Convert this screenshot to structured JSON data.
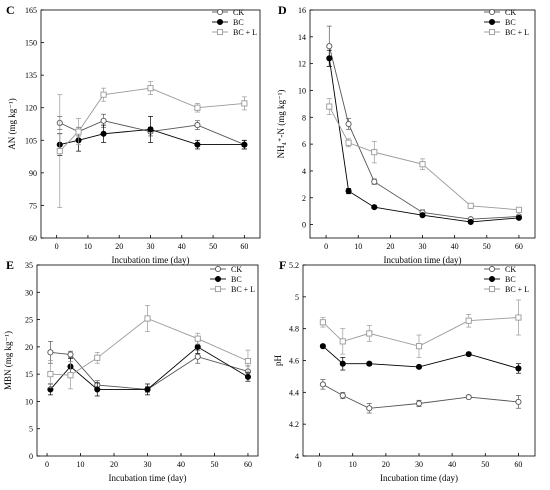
{
  "chart_data": [
    {
      "type": "line",
      "panel_label": "C",
      "title": "",
      "xlabel": "Incubation time (day)",
      "ylabel": "AN (mg kg⁻¹)",
      "xlim": [
        -5,
        65
      ],
      "ylim": [
        60,
        165
      ],
      "xticks": [
        0,
        10,
        20,
        30,
        40,
        50,
        60
      ],
      "yticks": [
        60,
        75,
        90,
        105,
        120,
        135,
        150,
        165
      ],
      "x": [
        1,
        7,
        15,
        30,
        45,
        60
      ],
      "legend_position": "top-right",
      "series": [
        {
          "name": "CK",
          "marker": "open-circle",
          "color": "#555555",
          "values": [
            113,
            109,
            114,
            109,
            112,
            103
          ],
          "errors": [
            3,
            2,
            3,
            2,
            2,
            2
          ]
        },
        {
          "name": "BC",
          "marker": "filled-circle",
          "color": "#000000",
          "values": [
            103,
            105,
            108,
            110,
            103,
            103
          ],
          "errors": [
            5,
            5,
            4,
            6,
            2,
            2
          ]
        },
        {
          "name": "BC + L",
          "marker": "open-square",
          "color": "#999999",
          "values": [
            100,
            109,
            126,
            129,
            120,
            122
          ],
          "errors": [
            26,
            6,
            3,
            3,
            2,
            3
          ]
        }
      ]
    },
    {
      "type": "line",
      "panel_label": "D",
      "title": "",
      "xlabel": "Incubation time (day)",
      "ylabel": "NH₄⁺-N (mg kg⁻¹)",
      "xlim": [
        -5,
        65
      ],
      "ylim": [
        -1,
        16
      ],
      "xticks": [
        0,
        10,
        20,
        30,
        40,
        50,
        60
      ],
      "yticks": [
        0,
        2,
        4,
        6,
        8,
        10,
        12,
        14,
        16
      ],
      "x": [
        1,
        7,
        15,
        30,
        45,
        60
      ],
      "legend_position": "top-right",
      "series": [
        {
          "name": "CK",
          "marker": "open-circle",
          "color": "#555555",
          "values": [
            13.3,
            7.5,
            3.2,
            0.9,
            0.4,
            0.6
          ],
          "errors": [
            1.5,
            0.4,
            0.2,
            0.2,
            0.1,
            0.1
          ]
        },
        {
          "name": "BC",
          "marker": "filled-circle",
          "color": "#000000",
          "values": [
            12.4,
            2.5,
            1.3,
            0.7,
            0.2,
            0.5
          ],
          "errors": [
            0.6,
            0.2,
            0.1,
            0.1,
            0.1,
            0.1
          ]
        },
        {
          "name": "BC + L",
          "marker": "open-square",
          "color": "#999999",
          "values": [
            8.8,
            6.1,
            5.4,
            4.5,
            1.4,
            1.1
          ],
          "errors": [
            0.6,
            0.3,
            0.8,
            0.4,
            0.1,
            0.1
          ]
        }
      ]
    },
    {
      "type": "line",
      "panel_label": "E",
      "title": "",
      "xlabel": "Incubation time (day)",
      "ylabel": "MBN (mg kg⁻¹)",
      "xlim": [
        -3,
        63
      ],
      "ylim": [
        0,
        35
      ],
      "xticks": [
        0,
        10,
        20,
        30,
        40,
        50,
        60
      ],
      "yticks": [
        0,
        5,
        10,
        15,
        20,
        25,
        30,
        35
      ],
      "x": [
        1,
        7,
        15,
        30,
        45,
        60
      ],
      "legend_position": "top-right",
      "series": [
        {
          "name": "CK",
          "marker": "open-circle",
          "color": "#555555",
          "values": [
            19,
            18.6,
            13,
            12.2,
            18.2,
            15.5
          ],
          "errors": [
            2,
            0.6,
            0.8,
            0.5,
            1.2,
            1
          ]
        },
        {
          "name": "BC",
          "marker": "filled-circle",
          "color": "#000000",
          "values": [
            12.2,
            16.4,
            12.2,
            12.2,
            20,
            14.5
          ],
          "errors": [
            1,
            1.5,
            1.2,
            1,
            1.2,
            0.8
          ]
        },
        {
          "name": "BC + L",
          "marker": "open-square",
          "color": "#999999",
          "values": [
            15,
            14.8,
            18,
            25.2,
            21.5,
            17.4
          ],
          "errors": [
            2.5,
            2.5,
            1,
            2.4,
            1,
            2
          ]
        }
      ]
    },
    {
      "type": "line",
      "panel_label": "F",
      "title": "",
      "xlabel": "Incubation time (day)",
      "ylabel": "pH",
      "xlim": [
        -5,
        65
      ],
      "ylim": [
        4.0,
        5.2
      ],
      "xticks": [
        0,
        10,
        20,
        30,
        40,
        50,
        60
      ],
      "yticks": [
        4.0,
        4.2,
        4.4,
        4.6,
        4.8,
        5.0,
        5.2
      ],
      "x": [
        1,
        7,
        15,
        30,
        45,
        60
      ],
      "legend_position": "top-right",
      "series": [
        {
          "name": "CK",
          "marker": "open-circle",
          "color": "#555555",
          "values": [
            4.45,
            4.38,
            4.3,
            4.33,
            4.37,
            4.34
          ],
          "errors": [
            0.03,
            0.02,
            0.03,
            0.02,
            0.01,
            0.04
          ]
        },
        {
          "name": "BC",
          "marker": "filled-circle",
          "color": "#000000",
          "values": [
            4.69,
            4.58,
            4.58,
            4.56,
            4.64,
            4.55
          ],
          "errors": [
            0.01,
            0.04,
            0.01,
            0.01,
            0.01,
            0.03
          ]
        },
        {
          "name": "BC + L",
          "marker": "open-square",
          "color": "#999999",
          "values": [
            4.84,
            4.72,
            4.77,
            4.69,
            4.85,
            4.87
          ],
          "errors": [
            0.03,
            0.08,
            0.05,
            0.07,
            0.04,
            0.11
          ]
        }
      ]
    }
  ]
}
